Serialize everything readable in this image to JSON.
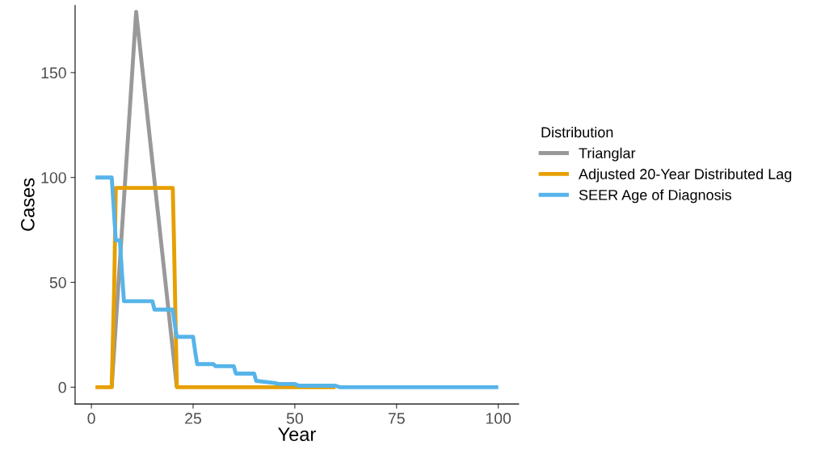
{
  "chart_data": {
    "type": "line",
    "xlabel": "Year",
    "ylabel": "Cases",
    "legend_title": "Distribution",
    "legend": "right",
    "grid": false,
    "marker": "none",
    "line_style": "solid",
    "xlim": [
      -4,
      105
    ],
    "ylim": [
      -8,
      182
    ],
    "xticks": [
      0,
      25,
      50,
      75,
      100
    ],
    "yticks": [
      0,
      50,
      100,
      150
    ],
    "series": [
      {
        "name": "Trianglar",
        "color": "#999999",
        "x": [
          5,
          11,
          21
        ],
        "values": [
          0,
          179,
          0
        ]
      },
      {
        "name": "Adjusted 20-Year Distributed Lag",
        "color": "#e69f00",
        "x": [
          1,
          5,
          5.3,
          5.6,
          6,
          20,
          20.3,
          20.6,
          21,
          60
        ],
        "values": [
          0,
          0,
          24,
          47,
          95,
          95,
          70,
          40,
          0,
          0
        ]
      },
      {
        "name": "SEER Age of Diagnosis",
        "color": "#56b4e9",
        "x": [
          1,
          5,
          5.5,
          6,
          7,
          7.5,
          8,
          15,
          15.5,
          20,
          20.5,
          21,
          25,
          25.5,
          26,
          30,
          30.5,
          35,
          35.5,
          40,
          40.5,
          45,
          46,
          50,
          51,
          60,
          61,
          100
        ],
        "values": [
          100,
          100,
          85,
          70,
          70,
          55,
          41,
          41,
          37,
          37,
          30,
          24,
          24,
          17,
          11,
          11,
          10,
          10,
          6.5,
          6.5,
          3,
          2,
          1.5,
          1.5,
          0.7,
          0.7,
          0,
          0
        ]
      }
    ]
  }
}
